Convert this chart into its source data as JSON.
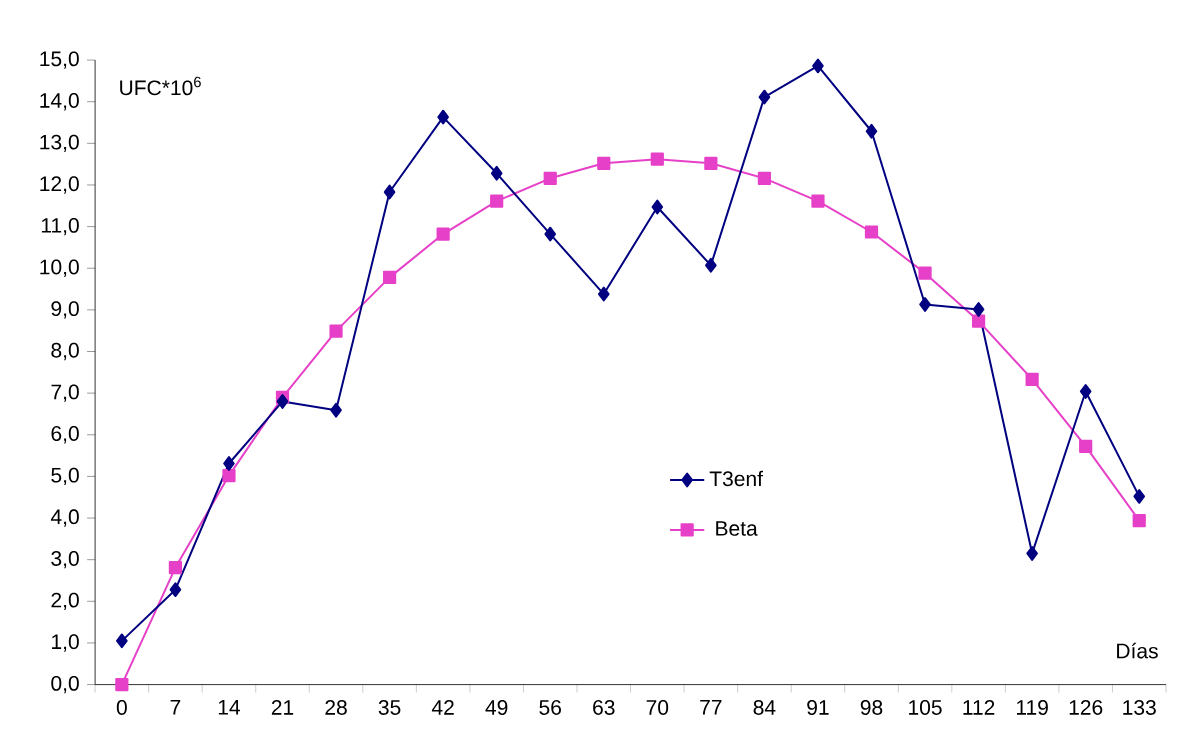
{
  "chart_data": {
    "type": "line",
    "ylabel": "UFC*10$^{6}$",
    "xlabel": "Días",
    "categories": [
      "0",
      "7",
      "14",
      "21",
      "28",
      "35",
      "42",
      "49",
      "56",
      "63",
      "70",
      "77",
      "84",
      "91",
      "98",
      "105",
      "112",
      "119",
      "126",
      "133"
    ],
    "series": [
      {
        "name": "T3enf",
        "color": "#000080",
        "marker": "diamond",
        "values": [
          1.05,
          2.28,
          5.31,
          6.8,
          6.59,
          11.83,
          13.63,
          12.28,
          10.82,
          9.38,
          11.47,
          10.07,
          14.11,
          14.86,
          13.29,
          9.13,
          9.01,
          3.15,
          7.04,
          4.52
        ]
      },
      {
        "name": "Beta",
        "color": "#e640c8",
        "marker": "square",
        "values": [
          0.0,
          2.81,
          5.02,
          6.9,
          8.49,
          9.78,
          10.82,
          11.61,
          12.16,
          12.52,
          12.62,
          12.52,
          12.16,
          11.61,
          10.87,
          9.88,
          8.73,
          7.33,
          5.72,
          3.94
        ]
      }
    ],
    "ylim": [
      0,
      15
    ],
    "yticks": [
      {
        "value": 0,
        "label": "0,0"
      },
      {
        "value": 1,
        "label": "1,0"
      },
      {
        "value": 2,
        "label": "2,0"
      },
      {
        "value": 3,
        "label": "3,0"
      },
      {
        "value": 4,
        "label": "4,0"
      },
      {
        "value": 5,
        "label": "5,0"
      },
      {
        "value": 6,
        "label": "6,0"
      },
      {
        "value": 7,
        "label": "7,0"
      },
      {
        "value": 8,
        "label": "8,0"
      },
      {
        "value": 9,
        "label": "9,0"
      },
      {
        "value": 10,
        "label": "10,0"
      },
      {
        "value": 11,
        "label": "11,0"
      },
      {
        "value": 12,
        "label": "12,0"
      },
      {
        "value": 13,
        "label": "13,0"
      },
      {
        "value": 14,
        "label": "14,0"
      },
      {
        "value": 15,
        "label": "15,0"
      }
    ],
    "grid": false,
    "legend": "bottom",
    "line_style": "solid"
  }
}
